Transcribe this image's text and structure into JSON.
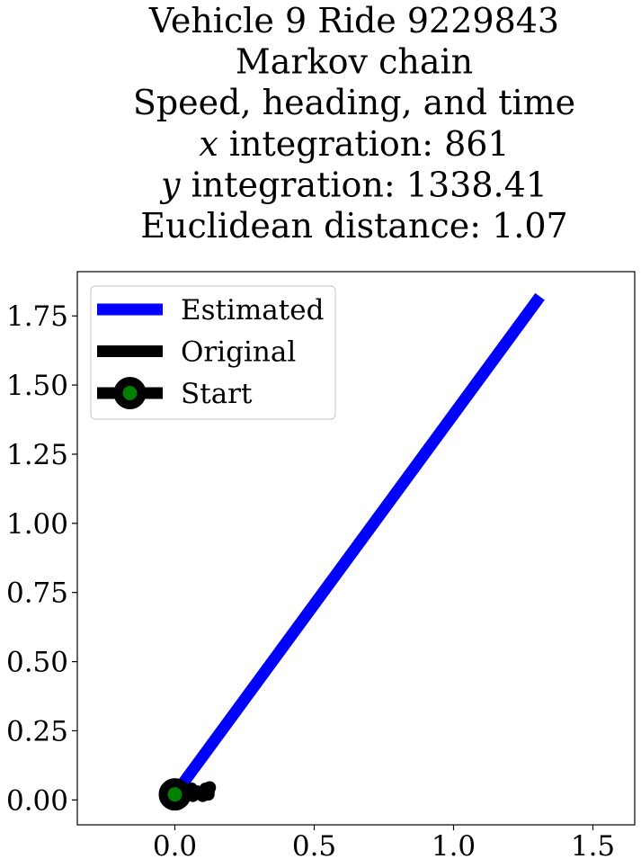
{
  "chart_data": {
    "type": "line",
    "title_lines": [
      {
        "pre": "Vehicle 9 Ride 9229843",
        "var": "",
        "post": ""
      },
      {
        "pre": "Markov chain",
        "var": "",
        "post": ""
      },
      {
        "pre": "Speed, heading, and time",
        "var": "",
        "post": ""
      },
      {
        "pre": "",
        "var": "x",
        "post": " integration: 861"
      },
      {
        "pre": "",
        "var": "y",
        "post": " integration: 1338.41"
      },
      {
        "pre": "Euclidean distance: 1.07",
        "var": "",
        "post": ""
      }
    ],
    "xlabel": "",
    "ylabel": "",
    "xlim": [
      -0.35,
      1.65
    ],
    "ylim": [
      -0.09,
      1.91
    ],
    "xticks": [
      0.0,
      0.5,
      1.0,
      1.5
    ],
    "xtick_labels": [
      "0.0",
      "0.5",
      "1.0",
      "1.5"
    ],
    "yticks": [
      0.0,
      0.25,
      0.5,
      0.75,
      1.0,
      1.25,
      1.5,
      1.75
    ],
    "ytick_labels": [
      "0.00",
      "0.25",
      "0.50",
      "0.75",
      "1.00",
      "1.25",
      "1.50",
      "1.75"
    ],
    "grid": false,
    "legend_position": "upper-left",
    "series": [
      {
        "name": "Estimated",
        "color": "#0000ff",
        "x": [
          0.0,
          1.31
        ],
        "y": [
          0.02,
          1.82
        ]
      },
      {
        "name": "Original",
        "color": "#000000",
        "x": [
          0.0,
          0.03,
          0.06,
          0.065,
          0.08,
          0.1,
          0.11,
          0.12,
          0.125
        ],
        "y": [
          0.02,
          0.03,
          0.04,
          0.015,
          0.03,
          0.015,
          0.04,
          0.02,
          0.045
        ]
      }
    ],
    "start": {
      "name": "Start",
      "x": 0.0,
      "y": 0.02,
      "marker_face": "#008000",
      "marker_edge": "#000000"
    }
  }
}
